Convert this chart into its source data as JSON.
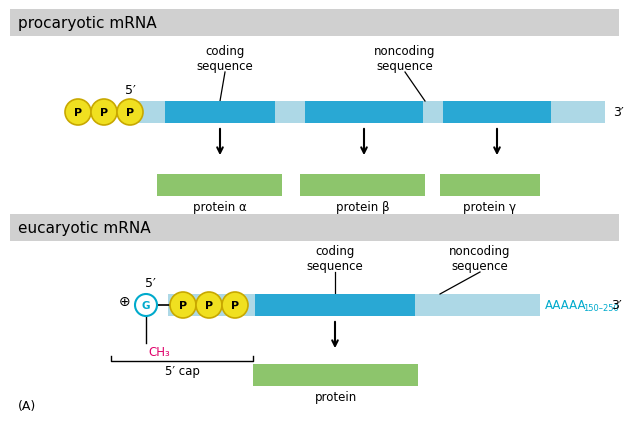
{
  "bg_color": "#ffffff",
  "section_label_bg": "#d0d0d0",
  "light_blue": "#add8e6",
  "dark_blue": "#29a8d4",
  "green": "#8dc56c",
  "yellow": "#f0e020",
  "yellow_border": "#c8a800",
  "cyan_text": "#00aacc",
  "pink_text": "#e0006a",
  "title1": "procaryotic mRNA",
  "title2": "eucaryotic mRNA",
  "label_A": "(A)",
  "five_prime": "5′",
  "three_prime": "3′",
  "coding_seq": "coding\nsequence",
  "noncoding_seq": "noncoding\nsequence",
  "protein_alpha": "protein α",
  "protein_beta": "protein β",
  "protein_gamma": "protein γ",
  "protein": "protein",
  "five_cap": "5′ cap",
  "ch3": "CH₃",
  "g_label": "G",
  "plus_label": "⊕",
  "aaaaa_label": "AAAAA",
  "subscript_label": "150–250"
}
